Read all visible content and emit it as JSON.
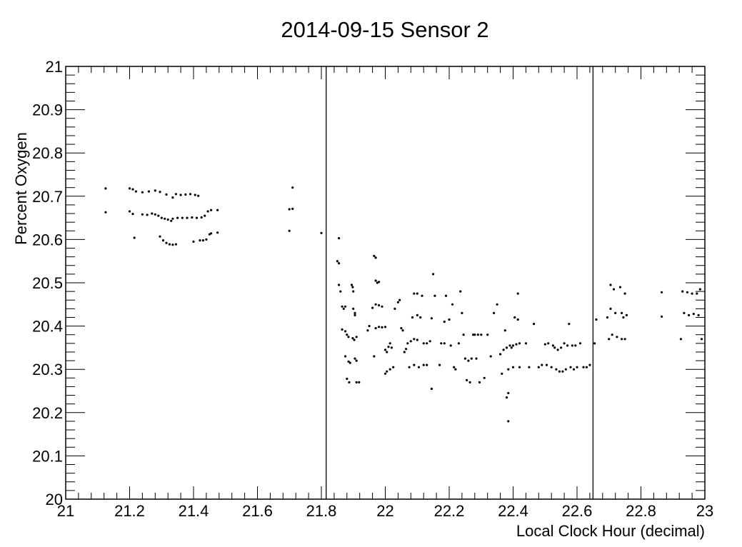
{
  "chart_data": {
    "type": "scatter",
    "title": "2014-09-15  Sensor 2",
    "xlabel": "Local Clock Hour (decimal)",
    "ylabel": "Percent Oxygen",
    "xlim": [
      21,
      23
    ],
    "ylim": [
      20,
      21
    ],
    "x_ticks": [
      "21",
      "21.2",
      "21.4",
      "21.6",
      "21.8",
      "22",
      "22.2",
      "22.4",
      "22.6",
      "22.8",
      "23"
    ],
    "y_ticks": [
      "20",
      "20.1",
      "20.2",
      "20.3",
      "20.4",
      "20.5",
      "20.6",
      "20.7",
      "20.8",
      "20.9",
      "21"
    ],
    "grid": false,
    "vertical_lines": [
      21.815,
      22.65
    ],
    "series": [
      {
        "points": [
          [
            21.125,
            20.718
          ],
          [
            21.125,
            20.663
          ],
          [
            21.2,
            20.718
          ],
          [
            21.21,
            20.716
          ],
          [
            21.22,
            20.711
          ],
          [
            21.24,
            20.709
          ],
          [
            21.26,
            20.711
          ],
          [
            21.28,
            20.713
          ],
          [
            21.295,
            20.71
          ],
          [
            21.315,
            20.704
          ],
          [
            21.335,
            20.697
          ],
          [
            21.345,
            20.705
          ],
          [
            21.36,
            20.703
          ],
          [
            21.375,
            20.704
          ],
          [
            21.39,
            20.705
          ],
          [
            21.405,
            20.703
          ],
          [
            21.415,
            20.701
          ],
          [
            21.2,
            20.665
          ],
          [
            21.21,
            20.659
          ],
          [
            21.24,
            20.658
          ],
          [
            21.255,
            20.657
          ],
          [
            21.27,
            20.66
          ],
          [
            21.28,
            20.658
          ],
          [
            21.29,
            20.655
          ],
          [
            21.3,
            20.65
          ],
          [
            21.31,
            20.648
          ],
          [
            21.32,
            20.646
          ],
          [
            21.33,
            20.643
          ],
          [
            21.335,
            20.648
          ],
          [
            21.35,
            20.65
          ],
          [
            21.365,
            20.65
          ],
          [
            21.38,
            20.65
          ],
          [
            21.395,
            20.651
          ],
          [
            21.41,
            20.65
          ],
          [
            21.425,
            20.651
          ],
          [
            21.435,
            20.655
          ],
          [
            21.445,
            20.665
          ],
          [
            21.455,
            20.668
          ],
          [
            21.475,
            20.668
          ],
          [
            21.215,
            20.604
          ],
          [
            21.295,
            20.607
          ],
          [
            21.305,
            20.598
          ],
          [
            21.315,
            20.592
          ],
          [
            21.325,
            20.589
          ],
          [
            21.335,
            20.588
          ],
          [
            21.345,
            20.589
          ],
          [
            21.4,
            20.595
          ],
          [
            21.42,
            20.598
          ],
          [
            21.43,
            20.598
          ],
          [
            21.44,
            20.6
          ],
          [
            21.45,
            20.612
          ],
          [
            21.455,
            20.614
          ],
          [
            21.475,
            20.616
          ],
          [
            21.7,
            20.62
          ],
          [
            21.7,
            20.67
          ],
          [
            21.71,
            20.671
          ],
          [
            21.71,
            20.72
          ],
          [
            21.8,
            20.615
          ],
          [
            21.855,
            20.603
          ],
          [
            21.85,
            20.55
          ],
          [
            21.855,
            20.545
          ],
          [
            21.855,
            20.495
          ],
          [
            21.86,
            20.48
          ],
          [
            21.865,
            20.445
          ],
          [
            21.87,
            20.44
          ],
          [
            21.875,
            20.445
          ],
          [
            21.865,
            20.392
          ],
          [
            21.875,
            20.388
          ],
          [
            21.88,
            20.38
          ],
          [
            21.885,
            20.375
          ],
          [
            21.875,
            20.33
          ],
          [
            21.885,
            20.318
          ],
          [
            21.89,
            20.315
          ],
          [
            21.88,
            20.278
          ],
          [
            21.887,
            20.27
          ],
          [
            21.895,
            20.495
          ],
          [
            21.898,
            20.49
          ],
          [
            21.9,
            20.48
          ],
          [
            21.9,
            20.44
          ],
          [
            21.905,
            20.43
          ],
          [
            21.905,
            20.425
          ],
          [
            21.898,
            20.372
          ],
          [
            21.903,
            20.368
          ],
          [
            21.91,
            20.375
          ],
          [
            21.905,
            20.325
          ],
          [
            21.91,
            20.32
          ],
          [
            21.91,
            20.27
          ],
          [
            21.918,
            20.27
          ],
          [
            21.945,
            20.39
          ],
          [
            21.95,
            20.4
          ],
          [
            21.96,
            20.442
          ],
          [
            21.965,
            20.562
          ],
          [
            21.97,
            20.558
          ],
          [
            21.97,
            20.505
          ],
          [
            21.975,
            20.5
          ],
          [
            21.98,
            20.502
          ],
          [
            21.97,
            20.45
          ],
          [
            21.98,
            20.448
          ],
          [
            21.99,
            20.445
          ],
          [
            21.965,
            20.33
          ],
          [
            21.97,
            20.395
          ],
          [
            21.98,
            20.398
          ],
          [
            21.99,
            20.397
          ],
          [
            22.0,
            20.398
          ],
          [
            22.0,
            20.345
          ],
          [
            22.005,
            20.34
          ],
          [
            22.01,
            20.352
          ],
          [
            22.015,
            20.36
          ],
          [
            22.02,
            20.35
          ],
          [
            22.0,
            20.29
          ],
          [
            22.005,
            20.295
          ],
          [
            22.015,
            20.3
          ],
          [
            22.025,
            20.305
          ],
          [
            22.03,
            20.44
          ],
          [
            22.04,
            20.455
          ],
          [
            22.045,
            20.46
          ],
          [
            22.05,
            20.395
          ],
          [
            22.055,
            20.39
          ],
          [
            22.06,
            20.34
          ],
          [
            22.065,
            20.347
          ],
          [
            22.07,
            20.36
          ],
          [
            22.08,
            20.365
          ],
          [
            22.09,
            20.37
          ],
          [
            22.1,
            20.368
          ],
          [
            22.085,
            20.42
          ],
          [
            22.09,
            20.475
          ],
          [
            22.1,
            20.475
          ],
          [
            22.115,
            20.47
          ],
          [
            22.1,
            20.425
          ],
          [
            22.11,
            20.42
          ],
          [
            22.075,
            20.305
          ],
          [
            22.09,
            20.31
          ],
          [
            22.105,
            20.305
          ],
          [
            22.12,
            20.31
          ],
          [
            22.13,
            20.31
          ],
          [
            22.12,
            20.36
          ],
          [
            22.13,
            20.36
          ],
          [
            22.14,
            20.365
          ],
          [
            22.145,
            20.418
          ],
          [
            22.15,
            20.52
          ],
          [
            22.155,
            20.47
          ],
          [
            22.145,
            20.255
          ],
          [
            22.17,
            20.31
          ],
          [
            22.175,
            20.36
          ],
          [
            22.185,
            20.41
          ],
          [
            22.185,
            20.36
          ],
          [
            22.19,
            20.47
          ],
          [
            22.2,
            20.415
          ],
          [
            22.205,
            20.355
          ],
          [
            22.21,
            20.45
          ],
          [
            22.215,
            20.305
          ],
          [
            22.22,
            20.3
          ],
          [
            22.23,
            20.36
          ],
          [
            22.235,
            20.48
          ],
          [
            22.24,
            20.43
          ],
          [
            22.245,
            20.38
          ],
          [
            22.25,
            20.325
          ],
          [
            22.255,
            20.275
          ],
          [
            22.26,
            20.32
          ],
          [
            22.265,
            20.27
          ],
          [
            22.27,
            20.325
          ],
          [
            22.275,
            20.38
          ],
          [
            22.28,
            20.38
          ],
          [
            22.285,
            20.325
          ],
          [
            22.29,
            20.38
          ],
          [
            22.295,
            20.27
          ],
          [
            22.3,
            20.38
          ],
          [
            22.31,
            20.28
          ],
          [
            22.32,
            20.38
          ],
          [
            22.33,
            20.33
          ],
          [
            22.34,
            20.43
          ],
          [
            22.35,
            20.45
          ],
          [
            22.36,
            20.335
          ],
          [
            22.365,
            20.29
          ],
          [
            22.37,
            20.345
          ],
          [
            22.375,
            20.39
          ],
          [
            22.38,
            20.35
          ],
          [
            22.385,
            20.3
          ],
          [
            22.38,
            20.235
          ],
          [
            22.385,
            20.245
          ],
          [
            22.385,
            20.18
          ],
          [
            22.39,
            20.355
          ],
          [
            22.395,
            20.35
          ],
          [
            22.4,
            20.355
          ],
          [
            22.4,
            20.305
          ],
          [
            22.405,
            20.42
          ],
          [
            22.41,
            20.358
          ],
          [
            22.415,
            20.475
          ],
          [
            22.415,
            20.415
          ],
          [
            22.42,
            20.36
          ],
          [
            22.42,
            20.305
          ],
          [
            22.44,
            20.36
          ],
          [
            22.45,
            20.305
          ],
          [
            22.465,
            20.405
          ],
          [
            22.48,
            20.305
          ],
          [
            22.49,
            20.31
          ],
          [
            22.5,
            20.358
          ],
          [
            22.505,
            20.31
          ],
          [
            22.51,
            20.36
          ],
          [
            22.52,
            20.305
          ],
          [
            22.525,
            20.355
          ],
          [
            22.53,
            20.35
          ],
          [
            22.535,
            20.3
          ],
          [
            22.54,
            20.345
          ],
          [
            22.545,
            20.295
          ],
          [
            22.55,
            20.35
          ],
          [
            22.555,
            20.295
          ],
          [
            22.56,
            20.36
          ],
          [
            22.565,
            20.3
          ],
          [
            22.57,
            20.355
          ],
          [
            22.575,
            20.405
          ],
          [
            22.58,
            20.305
          ],
          [
            22.585,
            20.355
          ],
          [
            22.59,
            20.3
          ],
          [
            22.595,
            20.355
          ],
          [
            22.6,
            20.305
          ],
          [
            22.61,
            20.36
          ],
          [
            22.62,
            20.305
          ],
          [
            22.63,
            20.305
          ],
          [
            22.64,
            20.31
          ],
          [
            22.655,
            20.36
          ],
          [
            22.66,
            20.415
          ],
          [
            22.695,
            20.42
          ],
          [
            22.7,
            20.37
          ],
          [
            22.705,
            20.495
          ],
          [
            22.705,
            20.44
          ],
          [
            22.71,
            20.38
          ],
          [
            22.715,
            20.485
          ],
          [
            22.72,
            20.43
          ],
          [
            22.725,
            20.375
          ],
          [
            22.735,
            20.49
          ],
          [
            22.74,
            20.43
          ],
          [
            22.74,
            20.37
          ],
          [
            22.745,
            20.42
          ],
          [
            22.75,
            20.37
          ],
          [
            22.75,
            20.475
          ],
          [
            22.755,
            20.425
          ],
          [
            22.865,
            20.478
          ],
          [
            22.865,
            20.422
          ],
          [
            22.925,
            20.37
          ],
          [
            22.93,
            20.48
          ],
          [
            22.935,
            20.43
          ],
          [
            22.945,
            20.478
          ],
          [
            22.95,
            20.425
          ],
          [
            22.96,
            20.475
          ],
          [
            22.965,
            20.428
          ],
          [
            22.975,
            20.475
          ],
          [
            22.98,
            20.425
          ],
          [
            22.985,
            20.485
          ],
          [
            22.99,
            20.37
          ]
        ]
      }
    ]
  }
}
